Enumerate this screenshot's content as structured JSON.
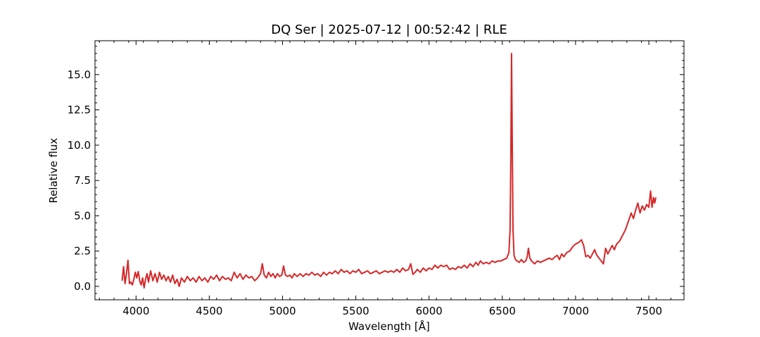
{
  "chart_data": {
    "type": "line",
    "title": "DQ Ser | 2025-07-12 | 00:52:42 | RLE",
    "xlabel": "Wavelength [Å]",
    "ylabel": "Relative flux",
    "xlim": [
      3720,
      7740
    ],
    "ylim": [
      -0.95,
      17.4
    ],
    "xticks": [
      4000,
      4500,
      5000,
      5500,
      6000,
      6500,
      7000,
      7500
    ],
    "xtick_labels": [
      "4000",
      "4500",
      "5000",
      "5500",
      "6000",
      "6500",
      "7000",
      "7500"
    ],
    "yticks": [
      0,
      2.5,
      5,
      7.5,
      10,
      12.5,
      15
    ],
    "ytick_labels": [
      "0.0",
      "2.5",
      "5.0",
      "7.5",
      "10.0",
      "12.5",
      "15.0"
    ],
    "grid": false,
    "series": [
      {
        "color": "#d62728",
        "points": [
          [
            3905,
            0.4
          ],
          [
            3915,
            1.4
          ],
          [
            3925,
            0.2
          ],
          [
            3935,
            0.9
          ],
          [
            3945,
            1.85
          ],
          [
            3955,
            0.2
          ],
          [
            3965,
            0.3
          ],
          [
            3975,
            0.1
          ],
          [
            3985,
            0.5
          ],
          [
            3995,
            1.0
          ],
          [
            4005,
            0.6
          ],
          [
            4015,
            1.05
          ],
          [
            4025,
            0.4
          ],
          [
            4035,
            0.1
          ],
          [
            4045,
            0.6
          ],
          [
            4055,
            -0.1
          ],
          [
            4065,
            0.5
          ],
          [
            4075,
            0.9
          ],
          [
            4085,
            0.3
          ],
          [
            4100,
            1.1
          ],
          [
            4115,
            0.4
          ],
          [
            4130,
            0.9
          ],
          [
            4145,
            0.3
          ],
          [
            4160,
            1.0
          ],
          [
            4175,
            0.5
          ],
          [
            4190,
            0.8
          ],
          [
            4205,
            0.4
          ],
          [
            4220,
            0.7
          ],
          [
            4235,
            0.3
          ],
          [
            4250,
            0.8
          ],
          [
            4265,
            0.2
          ],
          [
            4280,
            0.5
          ],
          [
            4295,
            0.0
          ],
          [
            4310,
            0.6
          ],
          [
            4330,
            0.3
          ],
          [
            4350,
            0.7
          ],
          [
            4370,
            0.4
          ],
          [
            4390,
            0.6
          ],
          [
            4410,
            0.3
          ],
          [
            4430,
            0.7
          ],
          [
            4450,
            0.4
          ],
          [
            4470,
            0.6
          ],
          [
            4490,
            0.3
          ],
          [
            4510,
            0.7
          ],
          [
            4530,
            0.5
          ],
          [
            4550,
            0.8
          ],
          [
            4570,
            0.4
          ],
          [
            4590,
            0.7
          ],
          [
            4610,
            0.5
          ],
          [
            4630,
            0.6
          ],
          [
            4650,
            0.4
          ],
          [
            4670,
            1.0
          ],
          [
            4690,
            0.6
          ],
          [
            4710,
            0.9
          ],
          [
            4730,
            0.5
          ],
          [
            4750,
            0.8
          ],
          [
            4770,
            0.6
          ],
          [
            4790,
            0.7
          ],
          [
            4810,
            0.4
          ],
          [
            4830,
            0.6
          ],
          [
            4850,
            0.9
          ],
          [
            4862,
            1.6
          ],
          [
            4875,
            0.8
          ],
          [
            4890,
            0.6
          ],
          [
            4905,
            1.0
          ],
          [
            4920,
            0.7
          ],
          [
            4935,
            0.9
          ],
          [
            4950,
            0.6
          ],
          [
            4965,
            0.9
          ],
          [
            4980,
            0.7
          ],
          [
            4995,
            0.8
          ],
          [
            5007,
            1.45
          ],
          [
            5020,
            0.8
          ],
          [
            5035,
            0.7
          ],
          [
            5050,
            0.8
          ],
          [
            5065,
            0.6
          ],
          [
            5080,
            0.9
          ],
          [
            5100,
            0.7
          ],
          [
            5120,
            0.9
          ],
          [
            5140,
            0.7
          ],
          [
            5160,
            0.9
          ],
          [
            5180,
            0.8
          ],
          [
            5200,
            1.0
          ],
          [
            5220,
            0.8
          ],
          [
            5240,
            0.9
          ],
          [
            5260,
            0.7
          ],
          [
            5280,
            1.0
          ],
          [
            5300,
            0.8
          ],
          [
            5320,
            1.0
          ],
          [
            5340,
            0.9
          ],
          [
            5360,
            1.1
          ],
          [
            5380,
            0.9
          ],
          [
            5400,
            1.2
          ],
          [
            5420,
            1.0
          ],
          [
            5440,
            1.1
          ],
          [
            5460,
            0.9
          ],
          [
            5480,
            1.1
          ],
          [
            5500,
            1.0
          ],
          [
            5520,
            1.2
          ],
          [
            5540,
            0.9
          ],
          [
            5560,
            1.0
          ],
          [
            5580,
            1.1
          ],
          [
            5600,
            0.9
          ],
          [
            5620,
            1.0
          ],
          [
            5640,
            1.1
          ],
          [
            5660,
            0.9
          ],
          [
            5680,
            1.0
          ],
          [
            5700,
            1.1
          ],
          [
            5720,
            1.0
          ],
          [
            5740,
            1.1
          ],
          [
            5760,
            1.0
          ],
          [
            5780,
            1.2
          ],
          [
            5800,
            1.0
          ],
          [
            5820,
            1.3
          ],
          [
            5840,
            1.1
          ],
          [
            5860,
            1.2
          ],
          [
            5875,
            1.6
          ],
          [
            5890,
            0.85
          ],
          [
            5905,
            1.0
          ],
          [
            5920,
            1.2
          ],
          [
            5940,
            1.0
          ],
          [
            5960,
            1.3
          ],
          [
            5980,
            1.1
          ],
          [
            6000,
            1.3
          ],
          [
            6020,
            1.2
          ],
          [
            6040,
            1.5
          ],
          [
            6060,
            1.3
          ],
          [
            6080,
            1.5
          ],
          [
            6100,
            1.4
          ],
          [
            6120,
            1.5
          ],
          [
            6140,
            1.2
          ],
          [
            6160,
            1.3
          ],
          [
            6180,
            1.2
          ],
          [
            6200,
            1.4
          ],
          [
            6220,
            1.3
          ],
          [
            6240,
            1.5
          ],
          [
            6260,
            1.3
          ],
          [
            6280,
            1.6
          ],
          [
            6300,
            1.4
          ],
          [
            6320,
            1.7
          ],
          [
            6335,
            1.5
          ],
          [
            6350,
            1.8
          ],
          [
            6370,
            1.6
          ],
          [
            6390,
            1.7
          ],
          [
            6410,
            1.6
          ],
          [
            6430,
            1.8
          ],
          [
            6450,
            1.7
          ],
          [
            6470,
            1.8
          ],
          [
            6490,
            1.8
          ],
          [
            6510,
            1.9
          ],
          [
            6530,
            2.0
          ],
          [
            6545,
            2.4
          ],
          [
            6553,
            4.0
          ],
          [
            6558,
            9.0
          ],
          [
            6563,
            16.5
          ],
          [
            6568,
            10.0
          ],
          [
            6573,
            4.0
          ],
          [
            6580,
            2.2
          ],
          [
            6590,
            1.9
          ],
          [
            6600,
            1.8
          ],
          [
            6615,
            1.7
          ],
          [
            6630,
            1.9
          ],
          [
            6645,
            1.7
          ],
          [
            6660,
            1.8
          ],
          [
            6670,
            2.1
          ],
          [
            6678,
            2.7
          ],
          [
            6688,
            2.0
          ],
          [
            6700,
            1.8
          ],
          [
            6720,
            1.6
          ],
          [
            6740,
            1.8
          ],
          [
            6760,
            1.7
          ],
          [
            6780,
            1.8
          ],
          [
            6800,
            1.9
          ],
          [
            6820,
            2.0
          ],
          [
            6840,
            1.9
          ],
          [
            6860,
            2.1
          ],
          [
            6875,
            2.2
          ],
          [
            6890,
            1.9
          ],
          [
            6905,
            2.3
          ],
          [
            6920,
            2.1
          ],
          [
            6940,
            2.4
          ],
          [
            6960,
            2.5
          ],
          [
            6980,
            2.8
          ],
          [
            7000,
            3.0
          ],
          [
            7020,
            3.1
          ],
          [
            7040,
            3.3
          ],
          [
            7055,
            2.9
          ],
          [
            7070,
            2.1
          ],
          [
            7085,
            2.2
          ],
          [
            7100,
            2.0
          ],
          [
            7115,
            2.3
          ],
          [
            7130,
            2.6
          ],
          [
            7145,
            2.2
          ],
          [
            7160,
            2.0
          ],
          [
            7175,
            1.8
          ],
          [
            7190,
            1.6
          ],
          [
            7205,
            2.7
          ],
          [
            7220,
            2.3
          ],
          [
            7235,
            2.6
          ],
          [
            7250,
            2.9
          ],
          [
            7265,
            2.6
          ],
          [
            7280,
            3.0
          ],
          [
            7300,
            3.2
          ],
          [
            7320,
            3.6
          ],
          [
            7340,
            4.0
          ],
          [
            7360,
            4.6
          ],
          [
            7380,
            5.2
          ],
          [
            7395,
            4.8
          ],
          [
            7410,
            5.4
          ],
          [
            7425,
            5.9
          ],
          [
            7440,
            5.2
          ],
          [
            7455,
            5.7
          ],
          [
            7470,
            5.4
          ],
          [
            7485,
            5.8
          ],
          [
            7500,
            5.6
          ],
          [
            7512,
            6.75
          ],
          [
            7522,
            5.6
          ],
          [
            7532,
            6.3
          ],
          [
            7540,
            5.9
          ],
          [
            7548,
            6.3
          ]
        ]
      }
    ]
  }
}
